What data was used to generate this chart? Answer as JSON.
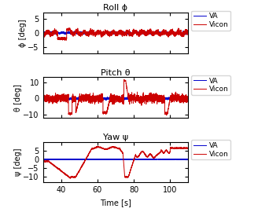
{
  "title_roll": "Roll ϕ",
  "title_pitch": "Pitch θ",
  "title_yaw": "Yaw ψ",
  "ylabel_roll": "ϕ [deg]",
  "ylabel_pitch": "θ [deg]",
  "ylabel_yaw": "ψ [deg]",
  "xlabel": "Time [s]",
  "xlim": [
    30,
    110
  ],
  "xticks": [
    40,
    60,
    80,
    100
  ],
  "roll_ylim": [
    -7,
    7
  ],
  "roll_yticks": [
    -5,
    0,
    5
  ],
  "pitch_ylim": [
    -12,
    13
  ],
  "pitch_yticks": [
    -10,
    0,
    10
  ],
  "yaw_ylim": [
    -13,
    10
  ],
  "yaw_yticks": [
    -10,
    -5,
    0,
    5
  ],
  "color_va": "#0000cc",
  "color_vicon": "#cc0000",
  "legend_labels": [
    "VA",
    "Vicon"
  ],
  "lw": 0.7,
  "seed": 42
}
